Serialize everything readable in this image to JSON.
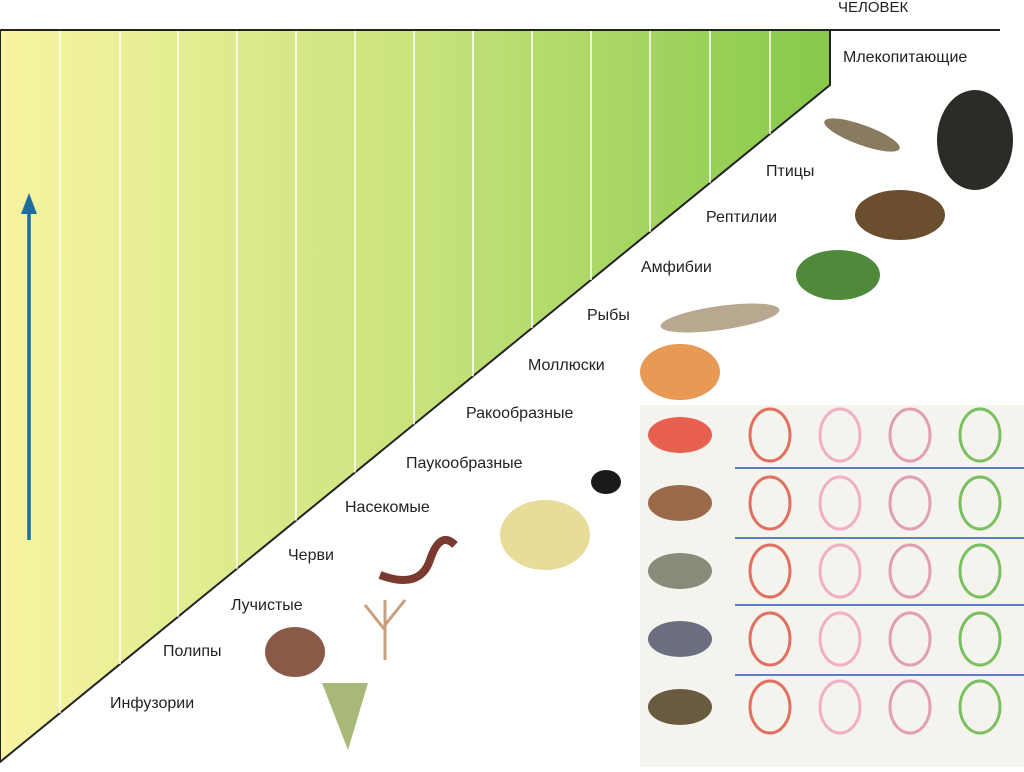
{
  "top_label": "ЧЕЛОВЕК",
  "groups": [
    "Млекопитающие",
    "Птицы",
    "Рептилии",
    "Амфибии",
    "Рыбы",
    "Моллюски",
    "Ракообразные",
    "Паукообразные",
    "Насекомые",
    "Черви",
    "Лучистые",
    "Полипы",
    "Инфузории"
  ]
}
